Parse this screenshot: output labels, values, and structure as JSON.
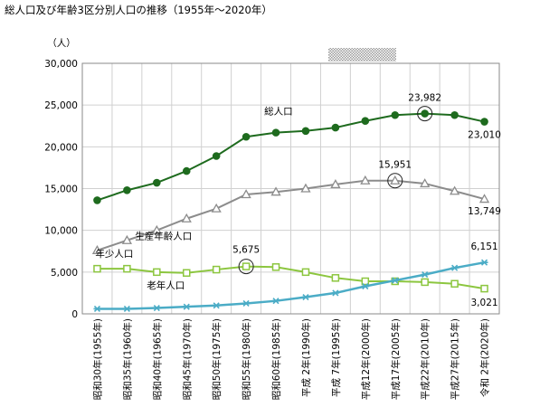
{
  "title": "総人口及び年齢3区分別人口の推移（1955年〜2020年）",
  "chart_data": {
    "type": "line",
    "title": "総人口及び年齢3区分別人口の推移（1955年〜2020年）",
    "ylabel": "（人）",
    "ylim": [
      0,
      30000
    ],
    "yticks": [
      0,
      5000,
      10000,
      15000,
      20000,
      25000,
      30000
    ],
    "ytick_labels": [
      "0",
      "5,000",
      "10,000",
      "15,000",
      "20,000",
      "25,000",
      "30,000"
    ],
    "grid": true,
    "categories": [
      "昭和30年(1955年)",
      "昭和35年(1960年)",
      "昭和40年(1965年)",
      "昭和45年(1970年)",
      "昭和50年(1975年)",
      "昭和55年(1980年)",
      "昭和60年(1985年)",
      "平成 2年(1990年)",
      "平成 7年(1995年)",
      "平成12年(2000年)",
      "平成17年(2005年)",
      "平成22年(2010年)",
      "平成27年(2015年)",
      "令和 2年(2020年)"
    ],
    "series": [
      {
        "name": "総人口",
        "color": "#1e6b1e",
        "marker": "circle",
        "values": [
          13600,
          14800,
          15700,
          17100,
          18900,
          21200,
          21700,
          21900,
          22300,
          23100,
          23800,
          23982,
          23800,
          23010
        ]
      },
      {
        "name": "生産年齢人口",
        "color": "#8c8c8c",
        "marker": "triangle",
        "values": [
          7600,
          8800,
          10000,
          11400,
          12600,
          14300,
          14600,
          15000,
          15500,
          15951,
          15951,
          15600,
          14700,
          13749
        ]
      },
      {
        "name": "年少人口",
        "color": "#8cc63f",
        "marker": "square",
        "values": [
          5400,
          5400,
          5000,
          4900,
          5300,
          5675,
          5600,
          5000,
          4300,
          3900,
          3900,
          3800,
          3600,
          3021
        ]
      },
      {
        "name": "老年人口",
        "color": "#4bacc6",
        "marker": "star",
        "values": [
          600,
          600,
          700,
          850,
          1000,
          1250,
          1550,
          2000,
          2500,
          3300,
          4000,
          4700,
          5500,
          6151
        ]
      }
    ],
    "data_labels": [
      {
        "series": 0,
        "index": 11,
        "text": "23,982",
        "circled": true
      },
      {
        "series": 0,
        "index": 13,
        "text": "23,010",
        "circled": false
      },
      {
        "series": 1,
        "index": 10,
        "text": "15,951",
        "circled": true
      },
      {
        "series": 1,
        "index": 13,
        "text": "13,749",
        "circled": false
      },
      {
        "series": 2,
        "index": 5,
        "text": "5,675",
        "circled": true
      },
      {
        "series": 2,
        "index": 13,
        "text": "3,021",
        "circled": false
      },
      {
        "series": 3,
        "index": 13,
        "text": "6,151",
        "circled": false
      }
    ]
  }
}
